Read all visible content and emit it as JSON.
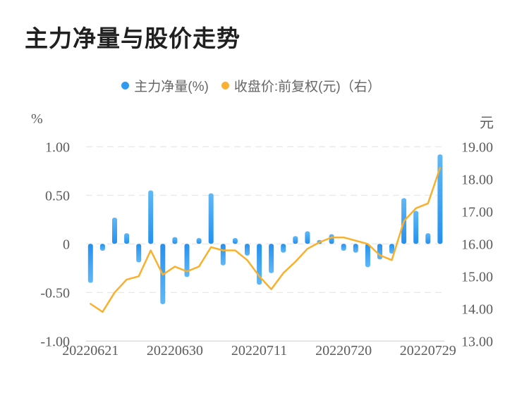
{
  "title": "主力净量与股价走势",
  "legend": {
    "items": [
      {
        "label": "主力净量(%)",
        "color": "#2e9bf0"
      },
      {
        "label": "收盘价:前复权(元)（右）",
        "color": "#fbb034"
      }
    ]
  },
  "left_axis": {
    "unit": "%",
    "ticks": [
      {
        "label": "1.00",
        "value": 1.0
      },
      {
        "label": "0.50",
        "value": 0.5
      },
      {
        "label": "0",
        "value": 0.0
      },
      {
        "label": "-0.50",
        "value": -0.5
      },
      {
        "label": "-1.00",
        "value": -1.0
      }
    ]
  },
  "right_axis": {
    "unit": "元",
    "ticks": [
      {
        "label": "19.00",
        "value": 19.0
      },
      {
        "label": "18.00",
        "value": 18.0
      },
      {
        "label": "17.00",
        "value": 17.0
      },
      {
        "label": "16.00",
        "value": 16.0
      },
      {
        "label": "15.00",
        "value": 15.0
      },
      {
        "label": "14.00",
        "value": 14.0
      },
      {
        "label": "13.00",
        "value": 13.0
      }
    ]
  },
  "x_axis": {
    "ticks": [
      {
        "label": "20220621",
        "index": 0
      },
      {
        "label": "20220630",
        "index": 7
      },
      {
        "label": "20220711",
        "index": 14
      },
      {
        "label": "20220720",
        "index": 21
      },
      {
        "label": "20220729",
        "index": 28
      }
    ]
  },
  "chart_data": {
    "type": "bar+line dual-axis",
    "title": "主力净量与股价走势",
    "n_points": 30,
    "x_tick_labels": [
      "20220621",
      "20220630",
      "20220711",
      "20220720",
      "20220729"
    ],
    "x_tick_indices": [
      0,
      7,
      14,
      21,
      28
    ],
    "left_ylim": [
      -1.0,
      1.0
    ],
    "right_ylim": [
      13.0,
      19.0
    ],
    "grid": "horizontal dashed lines at left-axis ticks, solid bottom axis",
    "legend_position": "top-center",
    "series": [
      {
        "name": "主力净量(%)",
        "type": "bar",
        "axis": "left",
        "values": [
          -0.4,
          -0.07,
          0.27,
          0.11,
          -0.19,
          0.55,
          -0.62,
          0.07,
          -0.34,
          0.06,
          0.52,
          -0.22,
          0.06,
          -0.12,
          -0.42,
          -0.3,
          -0.09,
          0.08,
          0.13,
          0.04,
          0.1,
          -0.07,
          -0.09,
          -0.24,
          -0.16,
          -0.1,
          0.47,
          0.34,
          0.11,
          0.92
        ]
      },
      {
        "name": "收盘价:前复权(元)",
        "type": "line",
        "axis": "right",
        "values": [
          14.15,
          13.9,
          14.5,
          14.9,
          15.0,
          15.8,
          15.05,
          15.3,
          15.15,
          15.3,
          15.9,
          15.8,
          15.8,
          15.5,
          15.0,
          14.6,
          15.1,
          15.45,
          15.85,
          16.05,
          16.2,
          16.2,
          16.1,
          16.0,
          15.65,
          15.5,
          16.7,
          17.1,
          17.25,
          18.35
        ]
      }
    ]
  },
  "colors": {
    "bar_main": "#2e9bf0",
    "bar_light": "#60b8f6",
    "line": "#f9b02c",
    "grid": "#e6e6e6",
    "axis_line": "#dcdcdc",
    "tick_text": "#5c5c5c",
    "legend_text": "#666666",
    "title_text": "#202020",
    "background": "#ffffff"
  }
}
